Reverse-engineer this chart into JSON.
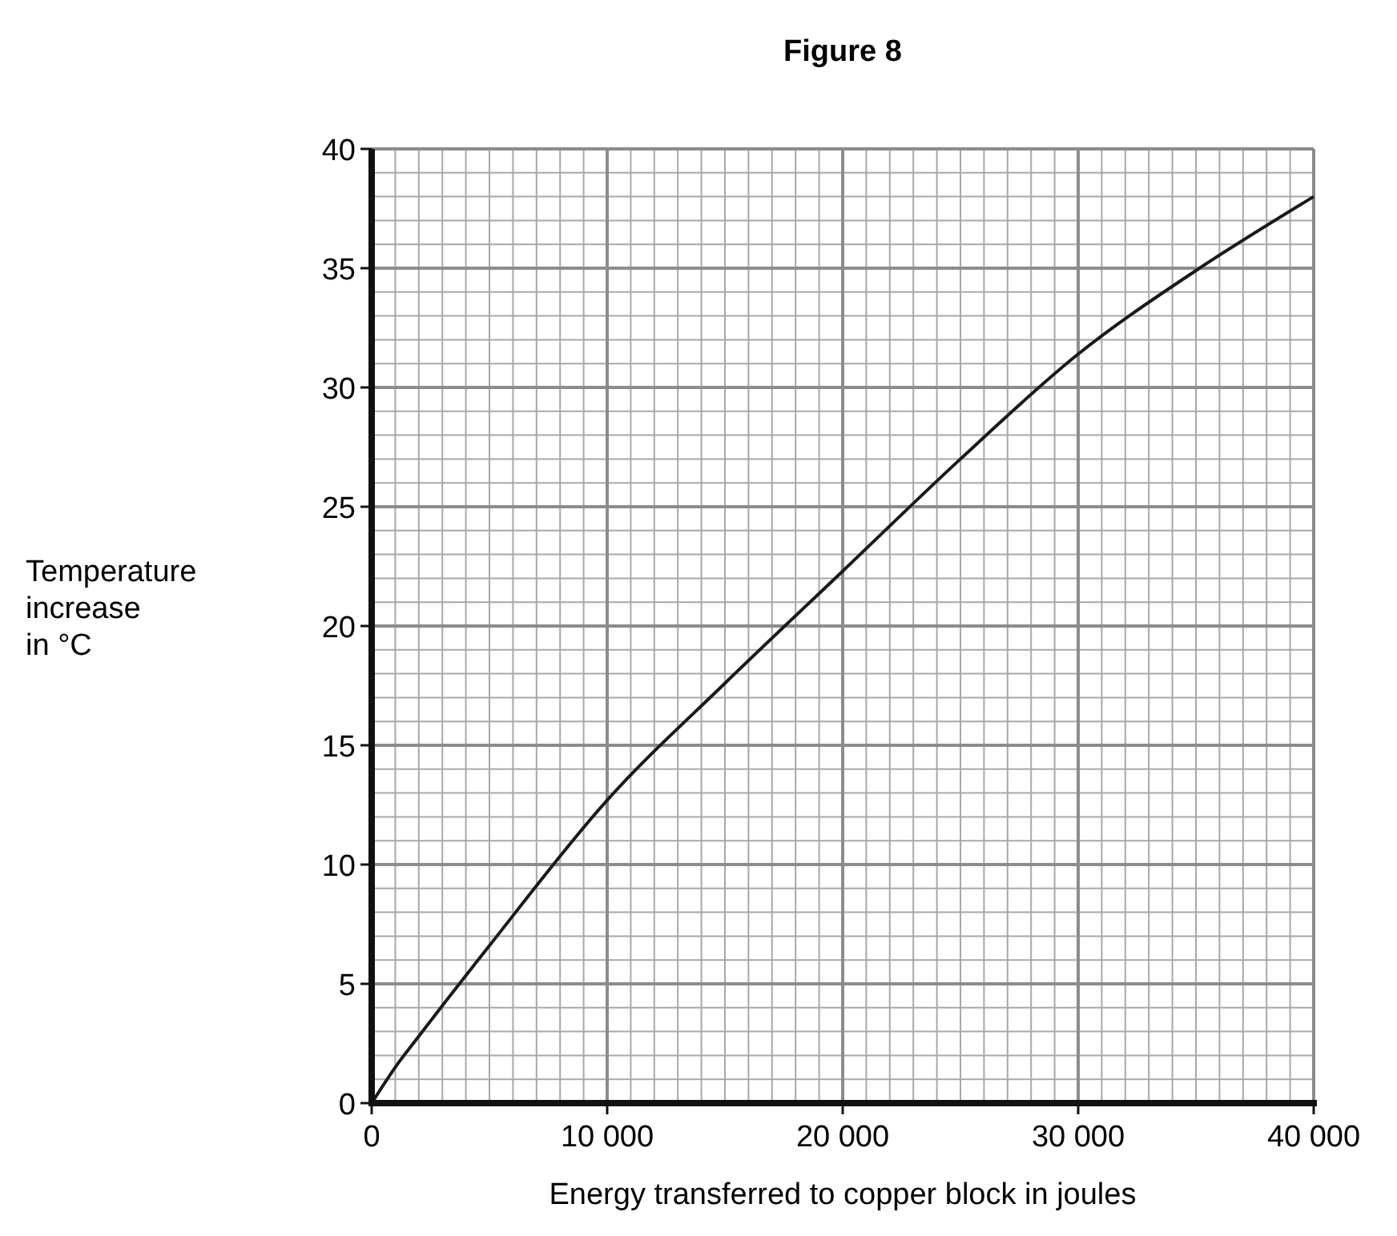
{
  "chart_data": {
    "type": "line",
    "title": "Figure 8",
    "xlabel": "Energy transferred to copper block in joules",
    "ylabel": "Temperature increase in °C",
    "x": [
      0,
      1000,
      2000,
      5000,
      10000,
      15000,
      20000,
      25000,
      30000,
      35000,
      40000
    ],
    "series": [
      {
        "color": "#1a1a1a",
        "values": [
          0,
          1.5,
          2.8,
          6.6,
          12.7,
          17.6,
          22.3,
          27.0,
          31.4,
          34.9,
          38.0
        ]
      }
    ],
    "xlim": [
      0,
      40000
    ],
    "ylim": [
      0,
      40
    ],
    "xticks": [
      0,
      {
        "value": 10000,
        "label": "10 000"
      },
      {
        "value": 20000,
        "label": "20 000"
      },
      {
        "value": 30000,
        "label": "30 000"
      },
      {
        "value": 40000,
        "label": "40 000"
      }
    ],
    "yticks": [
      0,
      5,
      10,
      15,
      20,
      25,
      30,
      35,
      40
    ],
    "grid": true,
    "marker": "none",
    "line_style": "solid"
  }
}
